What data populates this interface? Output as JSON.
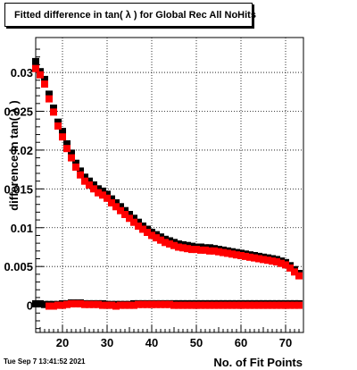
{
  "chart_data": {
    "type": "scatter",
    "title": "Fitted difference in tan( λ ) for Global Rec All NoHits",
    "xlabel": "No. of Fit Points",
    "ylabel": "difference in tan( λ )",
    "xlim": [
      14,
      74
    ],
    "ylim": [
      -0.0035,
      0.0345
    ],
    "x_ticks": [
      20,
      30,
      40,
      50,
      60,
      70
    ],
    "x_tick_labels": [
      "20",
      "30",
      "40",
      "50",
      "60",
      "70"
    ],
    "y_ticks": [
      0,
      0.005,
      0.01,
      0.015,
      0.02,
      0.025,
      0.03
    ],
    "y_tick_labels": [
      "0",
      "0.005",
      "0.01",
      "0.015",
      "0.02",
      "0.025",
      "0.03"
    ],
    "grid": true,
    "series": [
      {
        "color": "#000000",
        "marker": "square",
        "x": [
          14,
          15,
          16,
          17,
          18,
          19,
          20,
          21,
          22,
          23,
          24,
          25,
          26,
          27,
          28,
          29,
          30,
          31,
          32,
          33,
          34,
          35,
          36,
          37,
          38,
          39,
          40,
          41,
          42,
          43,
          44,
          45,
          46,
          47,
          48,
          49,
          50,
          51,
          52,
          53,
          54,
          55,
          56,
          57,
          58,
          59,
          60,
          61,
          62,
          63,
          64,
          65,
          66,
          67,
          68,
          69,
          70,
          71,
          72,
          73
        ],
        "y": [
          0.0314,
          0.0301,
          0.0291,
          0.0272,
          0.0254,
          0.0236,
          0.0224,
          0.0208,
          0.0196,
          0.0183,
          0.0173,
          0.0165,
          0.016,
          0.0155,
          0.015,
          0.0147,
          0.0143,
          0.0137,
          0.0132,
          0.0127,
          0.0122,
          0.0117,
          0.0112,
          0.0107,
          0.0102,
          0.0098,
          0.0094,
          0.0091,
          0.0088,
          0.0085,
          0.0083,
          0.0081,
          0.0079,
          0.0078,
          0.0077,
          0.0076,
          0.0075,
          0.0075,
          0.0074,
          0.0074,
          0.0073,
          0.0072,
          0.0071,
          0.007,
          0.0069,
          0.0068,
          0.0067,
          0.0066,
          0.0065,
          0.0064,
          0.0063,
          0.0062,
          0.0061,
          0.006,
          0.0059,
          0.0057,
          0.0055,
          0.0051,
          0.0046,
          0.0041
        ]
      },
      {
        "color": "#ff0000",
        "marker": "square",
        "x": [
          14,
          15,
          16,
          17,
          18,
          19,
          20,
          21,
          22,
          23,
          24,
          25,
          26,
          27,
          28,
          29,
          30,
          31,
          32,
          33,
          34,
          35,
          36,
          37,
          38,
          39,
          40,
          41,
          42,
          43,
          44,
          45,
          46,
          47,
          48,
          49,
          50,
          51,
          52,
          53,
          54,
          55,
          56,
          57,
          58,
          59,
          60,
          61,
          62,
          63,
          64,
          65,
          66,
          67,
          68,
          69,
          70,
          71,
          72,
          73
        ],
        "y": [
          0.0305,
          0.0297,
          0.0285,
          0.0266,
          0.0249,
          0.0231,
          0.0217,
          0.0202,
          0.019,
          0.0178,
          0.0168,
          0.016,
          0.0155,
          0.015,
          0.0145,
          0.0142,
          0.0138,
          0.0132,
          0.0127,
          0.0122,
          0.0117,
          0.0112,
          0.0107,
          0.0102,
          0.0098,
          0.0094,
          0.009,
          0.0087,
          0.0084,
          0.0081,
          0.0079,
          0.0077,
          0.0075,
          0.0074,
          0.0073,
          0.0072,
          0.0072,
          0.0071,
          0.0071,
          0.007,
          0.007,
          0.0069,
          0.0068,
          0.0067,
          0.0066,
          0.0065,
          0.0064,
          0.0063,
          0.0062,
          0.0061,
          0.006,
          0.0059,
          0.0058,
          0.0057,
          0.0056,
          0.0054,
          0.0052,
          0.0048,
          0.0043,
          0.0038
        ]
      },
      {
        "color": "#000000",
        "marker": "square",
        "x": [
          14,
          15,
          16,
          17,
          18,
          19,
          20,
          21,
          22,
          23,
          24,
          25,
          26,
          27,
          28,
          29,
          30,
          31,
          32,
          33,
          34,
          35,
          36,
          37,
          38,
          39,
          40,
          41,
          42,
          43,
          44,
          45,
          46,
          47,
          48,
          49,
          50,
          51,
          52,
          53,
          54,
          55,
          56,
          57,
          58,
          59,
          60,
          61,
          62,
          63,
          64,
          65,
          66,
          67,
          68,
          69,
          70,
          71,
          72,
          73
        ],
        "y": [
          0.0002,
          0.0002,
          0.0001,
          0.0001,
          0.0001,
          0.0001,
          0.0002,
          0.0002,
          0.0003,
          0.0003,
          0.0003,
          0.0002,
          0.0002,
          0.0002,
          0.0002,
          0.0002,
          0.0001,
          0.0001,
          0.0001,
          0.0001,
          0.0001,
          0.0001,
          0.0002,
          0.0002,
          0.0002,
          0.0002,
          0.0002,
          0.0002,
          0.0002,
          0.0002,
          0.0002,
          0.0002,
          0.0002,
          0.0002,
          0.0002,
          0.0002,
          0.0002,
          0.0002,
          0.0002,
          0.0002,
          0.0002,
          0.0002,
          0.0002,
          0.0002,
          0.0002,
          0.0002,
          0.0002,
          0.0002,
          0.0002,
          0.0002,
          0.0002,
          0.0002,
          0.0002,
          0.0002,
          0.0002,
          0.0002,
          0.0002,
          0.0002,
          0.0002,
          0.0002
        ]
      },
      {
        "color": "#ff0000",
        "marker": "square",
        "x": [
          17,
          18,
          19,
          20,
          21,
          22,
          23,
          24,
          25,
          26,
          27,
          28,
          29,
          30,
          31,
          32,
          33,
          34,
          35,
          36,
          37,
          38,
          39,
          40,
          41,
          42,
          43,
          44,
          45,
          46,
          47,
          48,
          49,
          50,
          51,
          52,
          53,
          54,
          55,
          56,
          57,
          58,
          59,
          60,
          61,
          62,
          63,
          64,
          65,
          66,
          67,
          68,
          69,
          70,
          71,
          72,
          73
        ],
        "y": [
          -0.0001,
          -0.0001,
          0.0,
          0.0,
          0.0001,
          0.0002,
          0.0002,
          0.0002,
          0.0001,
          0.0001,
          0.0001,
          0.0001,
          0.0,
          0.0,
          0.0,
          -0.0001,
          0.0,
          0.0,
          0.0,
          0.0,
          0.0001,
          0.0001,
          0.0001,
          0.0001,
          0.0001,
          0.0001,
          0.0001,
          0.0001,
          0.0,
          0.0,
          0.0,
          0.0,
          0.0,
          0.0,
          0.0,
          0.0,
          0.0,
          0.0,
          0.0,
          0.0,
          0.0,
          0.0,
          0.0,
          0.0,
          0.0,
          0.0,
          0.0,
          0.0,
          0.0,
          0.0,
          0.0,
          0.0,
          0.0,
          0.0,
          0.0,
          0.0,
          0.0
        ]
      }
    ]
  },
  "footer": {
    "timestamp": "Tue Sep  7 13:41:52 2021"
  }
}
